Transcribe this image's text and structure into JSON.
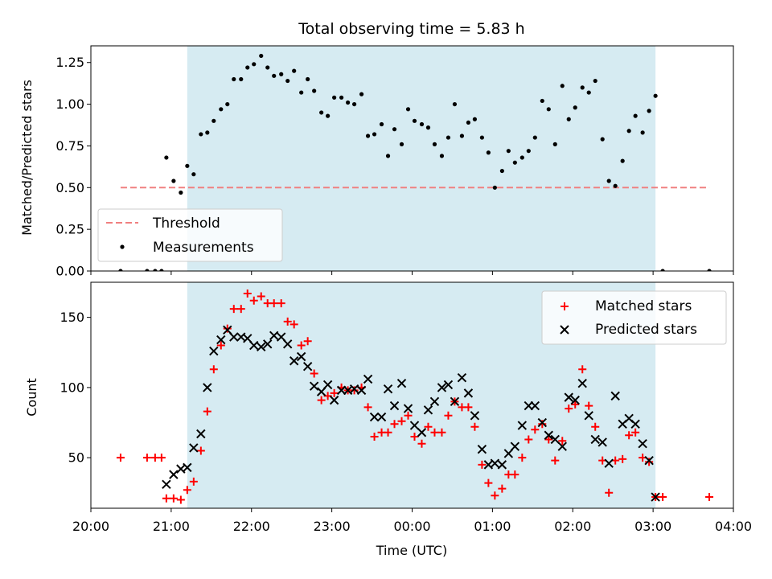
{
  "chart_data": [
    {
      "type": "scatter",
      "title": "Total observing time = 5.83 h",
      "xlabel": "",
      "ylabel": "Matched/Predicted stars",
      "xlim_hours": [
        20.0,
        28.0
      ],
      "ylim": [
        0.0,
        1.35
      ],
      "yticks": [
        0.0,
        0.25,
        0.5,
        0.75,
        1.0,
        1.25
      ],
      "ytick_labels": [
        "0.00",
        "0.25",
        "0.50",
        "0.75",
        "1.00",
        "1.25"
      ],
      "shaded_interval_hours": [
        21.2,
        27.03
      ],
      "threshold": {
        "name": "Threshold",
        "y": 0.5,
        "x_range_hours": [
          20.37,
          27.7
        ],
        "color": "#f08080",
        "style": "dashed"
      },
      "legend": {
        "position": "lower-left",
        "entries": [
          "Threshold",
          "Measurements"
        ]
      },
      "series": [
        {
          "name": "Measurements",
          "marker": "dot",
          "color": "#000000",
          "x_hours": [
            20.37,
            20.7,
            20.8,
            20.88,
            20.94,
            21.03,
            21.12,
            21.2,
            21.28,
            21.37,
            21.45,
            21.53,
            21.62,
            21.7,
            21.78,
            21.87,
            21.95,
            22.03,
            22.12,
            22.2,
            22.28,
            22.37,
            22.45,
            22.53,
            22.62,
            22.7,
            22.78,
            22.87,
            22.95,
            23.03,
            23.12,
            23.2,
            23.28,
            23.37,
            23.45,
            23.53,
            23.62,
            23.7,
            23.78,
            23.87,
            23.95,
            24.03,
            24.12,
            24.2,
            24.28,
            24.37,
            24.45,
            24.53,
            24.62,
            24.7,
            24.78,
            24.87,
            24.95,
            25.03,
            25.12,
            25.2,
            25.28,
            25.37,
            25.45,
            25.53,
            25.62,
            25.7,
            25.78,
            25.87,
            25.95,
            26.03,
            26.12,
            26.2,
            26.28,
            26.37,
            26.45,
            26.53,
            26.62,
            26.7,
            26.78,
            26.87,
            26.95,
            27.03,
            27.12,
            27.7
          ],
          "y": [
            0.0,
            0.0,
            0.0,
            0.0,
            0.68,
            0.54,
            0.47,
            0.63,
            0.58,
            0.82,
            0.83,
            0.9,
            0.97,
            1.0,
            1.15,
            1.15,
            1.22,
            1.24,
            1.29,
            1.22,
            1.17,
            1.18,
            1.14,
            1.2,
            1.07,
            1.15,
            1.08,
            0.95,
            0.93,
            1.04,
            1.04,
            1.01,
            1.0,
            1.06,
            0.81,
            0.82,
            0.88,
            0.69,
            0.85,
            0.76,
            0.97,
            0.9,
            0.88,
            0.86,
            0.76,
            0.69,
            0.8,
            1.0,
            0.81,
            0.89,
            0.91,
            0.8,
            0.71,
            0.5,
            0.6,
            0.72,
            0.65,
            0.68,
            0.72,
            0.8,
            1.02,
            0.97,
            0.76,
            1.11,
            0.91,
            0.98,
            1.1,
            1.07,
            1.14,
            0.79,
            0.54,
            0.51,
            0.66,
            0.84,
            0.93,
            0.83,
            0.96,
            1.05,
            0.0,
            0.0
          ]
        }
      ]
    },
    {
      "type": "scatter",
      "title": "",
      "xlabel": "Time (UTC)",
      "ylabel": "Count",
      "xlim_hours": [
        20.0,
        28.0
      ],
      "ylim": [
        14,
        175
      ],
      "yticks": [
        50,
        100,
        150
      ],
      "ytick_labels": [
        "50",
        "100",
        "150"
      ],
      "xticks_hours": [
        20,
        21,
        22,
        23,
        24,
        25,
        26,
        27,
        28
      ],
      "xtick_labels": [
        "20:00",
        "21:00",
        "22:00",
        "23:00",
        "00:00",
        "01:00",
        "02:00",
        "03:00",
        "04:00"
      ],
      "shaded_interval_hours": [
        21.2,
        27.03
      ],
      "legend": {
        "position": "top-right",
        "entries": [
          "Matched stars",
          "Predicted stars"
        ]
      },
      "series": [
        {
          "name": "Matched stars",
          "marker": "plus",
          "color": "#ff0000",
          "x_hours": [
            20.37,
            20.7,
            20.8,
            20.88,
            20.94,
            21.03,
            21.12,
            21.2,
            21.28,
            21.37,
            21.45,
            21.53,
            21.62,
            21.7,
            21.78,
            21.87,
            21.95,
            22.03,
            22.12,
            22.2,
            22.28,
            22.37,
            22.45,
            22.53,
            22.62,
            22.7,
            22.78,
            22.87,
            22.95,
            23.03,
            23.12,
            23.2,
            23.28,
            23.37,
            23.45,
            23.53,
            23.62,
            23.7,
            23.78,
            23.87,
            23.95,
            24.03,
            24.12,
            24.2,
            24.28,
            24.37,
            24.45,
            24.53,
            24.62,
            24.7,
            24.78,
            24.87,
            24.95,
            25.03,
            25.12,
            25.2,
            25.28,
            25.37,
            25.45,
            25.53,
            25.62,
            25.7,
            25.78,
            25.87,
            25.95,
            26.03,
            26.12,
            26.2,
            26.28,
            26.37,
            26.45,
            26.53,
            26.62,
            26.7,
            26.78,
            26.87,
            26.95,
            27.03,
            27.12,
            27.7
          ],
          "y": [
            50,
            50,
            50,
            50,
            21,
            21,
            20,
            27,
            33,
            55,
            83,
            113,
            130,
            142,
            156,
            156,
            167,
            162,
            165,
            160,
            160,
            160,
            147,
            145,
            130,
            133,
            110,
            91,
            94,
            96,
            100,
            98,
            98,
            100,
            86,
            65,
            68,
            68,
            74,
            76,
            80,
            65,
            60,
            72,
            68,
            68,
            80,
            90,
            86,
            86,
            72,
            45,
            32,
            23,
            28,
            38,
            38,
            50,
            63,
            70,
            74,
            63,
            48,
            62,
            85,
            88,
            113,
            87,
            72,
            48,
            25,
            48,
            49,
            66,
            68,
            50,
            47,
            22,
            22,
            22
          ]
        },
        {
          "name": "Predicted stars",
          "marker": "x",
          "color": "#000000",
          "x_hours": [
            20.94,
            21.03,
            21.12,
            21.2,
            21.28,
            21.37,
            21.45,
            21.53,
            21.62,
            21.7,
            21.78,
            21.87,
            21.95,
            22.03,
            22.12,
            22.2,
            22.28,
            22.37,
            22.45,
            22.53,
            22.62,
            22.7,
            22.78,
            22.87,
            22.95,
            23.03,
            23.12,
            23.2,
            23.28,
            23.37,
            23.45,
            23.53,
            23.62,
            23.7,
            23.78,
            23.87,
            23.95,
            24.03,
            24.12,
            24.2,
            24.28,
            24.37,
            24.45,
            24.53,
            24.62,
            24.7,
            24.78,
            24.87,
            24.95,
            25.03,
            25.12,
            25.2,
            25.28,
            25.37,
            25.45,
            25.53,
            25.62,
            25.7,
            25.78,
            25.87,
            25.95,
            26.03,
            26.12,
            26.2,
            26.28,
            26.37,
            26.45,
            26.53,
            26.62,
            26.7,
            26.78,
            26.87,
            26.95,
            27.03
          ],
          "y": [
            31,
            38,
            42,
            43,
            57,
            67,
            100,
            126,
            134,
            141,
            136,
            136,
            135,
            130,
            129,
            131,
            137,
            136,
            131,
            119,
            122,
            115,
            101,
            97,
            102,
            91,
            98,
            98,
            99,
            98,
            106,
            79,
            79,
            99,
            87,
            103,
            85,
            73,
            68,
            84,
            90,
            100,
            102,
            90,
            107,
            96,
            80,
            56,
            45,
            46,
            45,
            53,
            58,
            73,
            87,
            87,
            75,
            66,
            63,
            58,
            93,
            91,
            103,
            80,
            63,
            61,
            46,
            94,
            74,
            78,
            74,
            60,
            48,
            22
          ]
        }
      ]
    }
  ]
}
